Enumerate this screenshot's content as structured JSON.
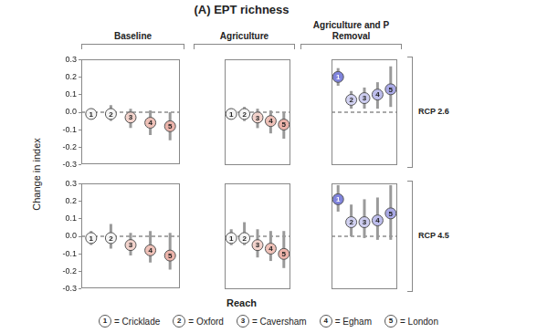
{
  "title": "(A) EPT richness",
  "x_label": "Reach",
  "y_label": "Change in index",
  "columns": [
    "Baseline",
    "Agriculture",
    "Agriculture and P Removal"
  ],
  "rows": [
    "RCP 2.6",
    "RCP 4.5"
  ],
  "reference_line": 0,
  "reaches": [
    {
      "number": "1",
      "text": "= Cricklade"
    },
    {
      "number": "2",
      "text": "= Oxford"
    },
    {
      "number": "3",
      "text": "= Caversham"
    },
    {
      "number": "4",
      "text": "= Egham"
    },
    {
      "number": "5",
      "text": "= London"
    }
  ],
  "chart_data": [
    {
      "type": "scatter",
      "marker": "circle",
      "grid": false,
      "tick_labels": "y",
      "categories": [
        "1",
        "2",
        "3",
        "4",
        "5"
      ],
      "values": [
        -0.01,
        -0.01,
        -0.03,
        -0.06,
        -0.08
      ],
      "error_low": [
        -0.04,
        -0.05,
        -0.09,
        -0.13,
        -0.16
      ],
      "error_high": [
        0.02,
        0.04,
        0.02,
        0.01,
        0.0
      ],
      "colors": [
        "#f5f5f5",
        "#f5f5f5",
        "#f3d3cc",
        "#efc1b8",
        "#ecb3aa"
      ],
      "ylim": [
        -0.3,
        0.3
      ],
      "yticks": [
        -0.3,
        -0.2,
        -0.1,
        {
          "value": 0,
          "label": "0.0"
        },
        0.1,
        0.2,
        0.3
      ]
    },
    {
      "type": "scatter",
      "marker": "circle",
      "grid": false,
      "tick_labels": false,
      "categories": [
        "1",
        "2",
        "3",
        "4",
        "5"
      ],
      "values": [
        -0.01,
        -0.01,
        -0.03,
        -0.05,
        -0.07
      ],
      "error_low": [
        -0.03,
        -0.05,
        -0.09,
        -0.12,
        -0.15
      ],
      "error_high": [
        0.02,
        0.03,
        0.02,
        0.01,
        0.0
      ],
      "colors": [
        "#f5f5f5",
        "#f5f5f5",
        "#f3d3cc",
        "#efc1b8",
        "#ecb3aa"
      ],
      "ylim": [
        -0.3,
        0.3
      ],
      "yticks": [
        -0.3,
        -0.2,
        -0.1,
        {
          "value": 0,
          "label": "0.0"
        },
        0.1,
        0.2,
        0.3
      ]
    },
    {
      "type": "scatter",
      "marker": "circle",
      "grid": false,
      "tick_labels": false,
      "categories": [
        "1",
        "2",
        "3",
        "4",
        "5"
      ],
      "values": [
        0.2,
        0.07,
        0.08,
        0.1,
        0.13
      ],
      "error_low": [
        0.15,
        0.02,
        0.02,
        0.02,
        0.03
      ],
      "error_high": [
        0.25,
        0.12,
        0.14,
        0.17,
        0.26
      ],
      "colors": [
        "#7f83dc",
        "#d2d2f2",
        "#cdcdf0",
        "#bdbdec",
        "#a9a9e6"
      ],
      "ylim": [
        -0.3,
        0.3
      ],
      "yticks": [
        -0.3,
        -0.2,
        -0.1,
        {
          "value": 0,
          "label": "0.0"
        },
        0.1,
        0.2,
        0.3
      ]
    },
    {
      "type": "scatter",
      "marker": "circle",
      "grid": false,
      "tick_labels": "y",
      "categories": [
        "1",
        "2",
        "3",
        "4",
        "5"
      ],
      "values": [
        -0.01,
        -0.01,
        -0.05,
        -0.08,
        -0.11
      ],
      "error_low": [
        -0.05,
        -0.07,
        -0.11,
        -0.15,
        -0.19
      ],
      "error_high": [
        0.03,
        0.07,
        0.02,
        0.03,
        0.02
      ],
      "colors": [
        "#f5f5f5",
        "#f5f5f5",
        "#f3d3cc",
        "#efc1b8",
        "#ecb3aa"
      ],
      "ylim": [
        -0.3,
        0.3
      ],
      "yticks": [
        -0.3,
        -0.2,
        -0.1,
        {
          "value": 0,
          "label": "0.0"
        },
        0.1,
        0.2,
        0.3
      ]
    },
    {
      "type": "scatter",
      "marker": "circle",
      "grid": false,
      "tick_labels": false,
      "categories": [
        "1",
        "2",
        "3",
        "4",
        "5"
      ],
      "values": [
        -0.01,
        -0.01,
        -0.05,
        -0.07,
        -0.1
      ],
      "error_low": [
        -0.05,
        -0.05,
        -0.12,
        -0.14,
        -0.18
      ],
      "error_high": [
        0.04,
        0.08,
        0.04,
        0.03,
        0.03
      ],
      "colors": [
        "#f5f5f5",
        "#f5f5f5",
        "#f3d3cc",
        "#efc1b8",
        "#ecb3aa"
      ],
      "ylim": [
        -0.3,
        0.3
      ],
      "yticks": [
        -0.3,
        -0.2,
        -0.1,
        {
          "value": 0,
          "label": "0.0"
        },
        0.1,
        0.2,
        0.3
      ]
    },
    {
      "type": "scatter",
      "marker": "circle",
      "grid": false,
      "tick_labels": false,
      "categories": [
        "1",
        "2",
        "3",
        "4",
        "5"
      ],
      "values": [
        0.21,
        0.08,
        0.08,
        0.09,
        0.13
      ],
      "error_low": [
        0.14,
        0.0,
        -0.01,
        -0.02,
        -0.02
      ],
      "error_high": [
        0.29,
        0.18,
        0.21,
        0.22,
        0.29
      ],
      "colors": [
        "#7f83dc",
        "#d2d2f2",
        "#cdcdf0",
        "#bdbdec",
        "#a9a9e6"
      ],
      "ylim": [
        -0.3,
        0.3
      ],
      "yticks": [
        -0.3,
        -0.2,
        -0.1,
        {
          "value": 0,
          "label": "0.0"
        },
        0.1,
        0.2,
        0.3
      ]
    }
  ]
}
